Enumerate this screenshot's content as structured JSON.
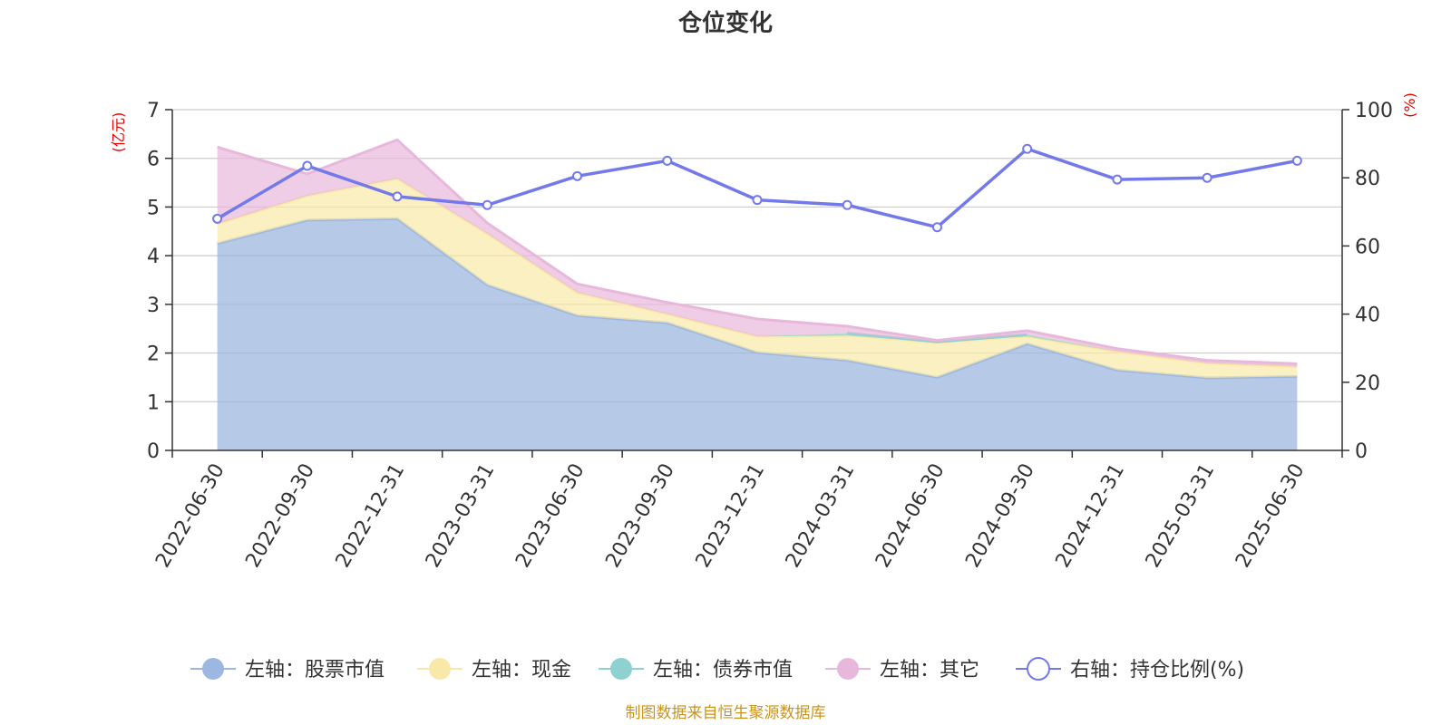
{
  "chart_data": {
    "type": "area",
    "title": "仓位变化",
    "x": [
      "2022-06-30",
      "2022-09-30",
      "2022-12-31",
      "2023-03-31",
      "2023-06-30",
      "2023-09-30",
      "2023-12-31",
      "2024-03-31",
      "2024-06-30",
      "2024-09-30",
      "2024-12-31",
      "2025-03-31",
      "2025-06-30"
    ],
    "left_axis": {
      "unit": "(亿元)",
      "min": 0,
      "max": 7,
      "ticks": [
        "0",
        "1",
        "2",
        "3",
        "4",
        "5",
        "6",
        "7"
      ]
    },
    "right_axis": {
      "unit": "(%)",
      "min": 0,
      "max": 100,
      "ticks": [
        "0",
        "20",
        "40",
        "60",
        "80",
        "100"
      ]
    },
    "stacked": true,
    "series": [
      {
        "name": "左轴：股票市值",
        "axis": "left",
        "color": "#9db8e0",
        "values": [
          4.25,
          4.73,
          4.76,
          3.4,
          2.77,
          2.62,
          2.01,
          1.85,
          1.5,
          2.19,
          1.65,
          1.49,
          1.52
        ]
      },
      {
        "name": "左轴：现金",
        "axis": "left",
        "color": "#f9e9a8",
        "values": [
          0.4,
          0.5,
          0.82,
          1.05,
          0.47,
          0.18,
          0.33,
          0.51,
          0.72,
          0.15,
          0.38,
          0.3,
          0.2
        ]
      },
      {
        "name": "左轴：债券市值",
        "axis": "left",
        "color": "#8ed1d1",
        "values": [
          0,
          0,
          0,
          0,
          0,
          0,
          0,
          0.05,
          0.01,
          0.04,
          0,
          0,
          0
        ]
      },
      {
        "name": "左轴：其它",
        "axis": "left",
        "color": "#e8b8dc",
        "values": [
          1.58,
          0.45,
          0.8,
          0.22,
          0.18,
          0.24,
          0.36,
          0.14,
          0.03,
          0.08,
          0.06,
          0.06,
          0.06
        ]
      },
      {
        "name": "右轴：持仓比例(%)",
        "axis": "right",
        "type": "line",
        "color": "#7479ea",
        "values": [
          68,
          83.5,
          74.5,
          72,
          80.5,
          85,
          73.5,
          72,
          65.5,
          88.5,
          79.5,
          80,
          85
        ]
      }
    ],
    "grid": true,
    "legend": "bottom-center",
    "source": "制图数据来自恒生聚源数据库"
  }
}
